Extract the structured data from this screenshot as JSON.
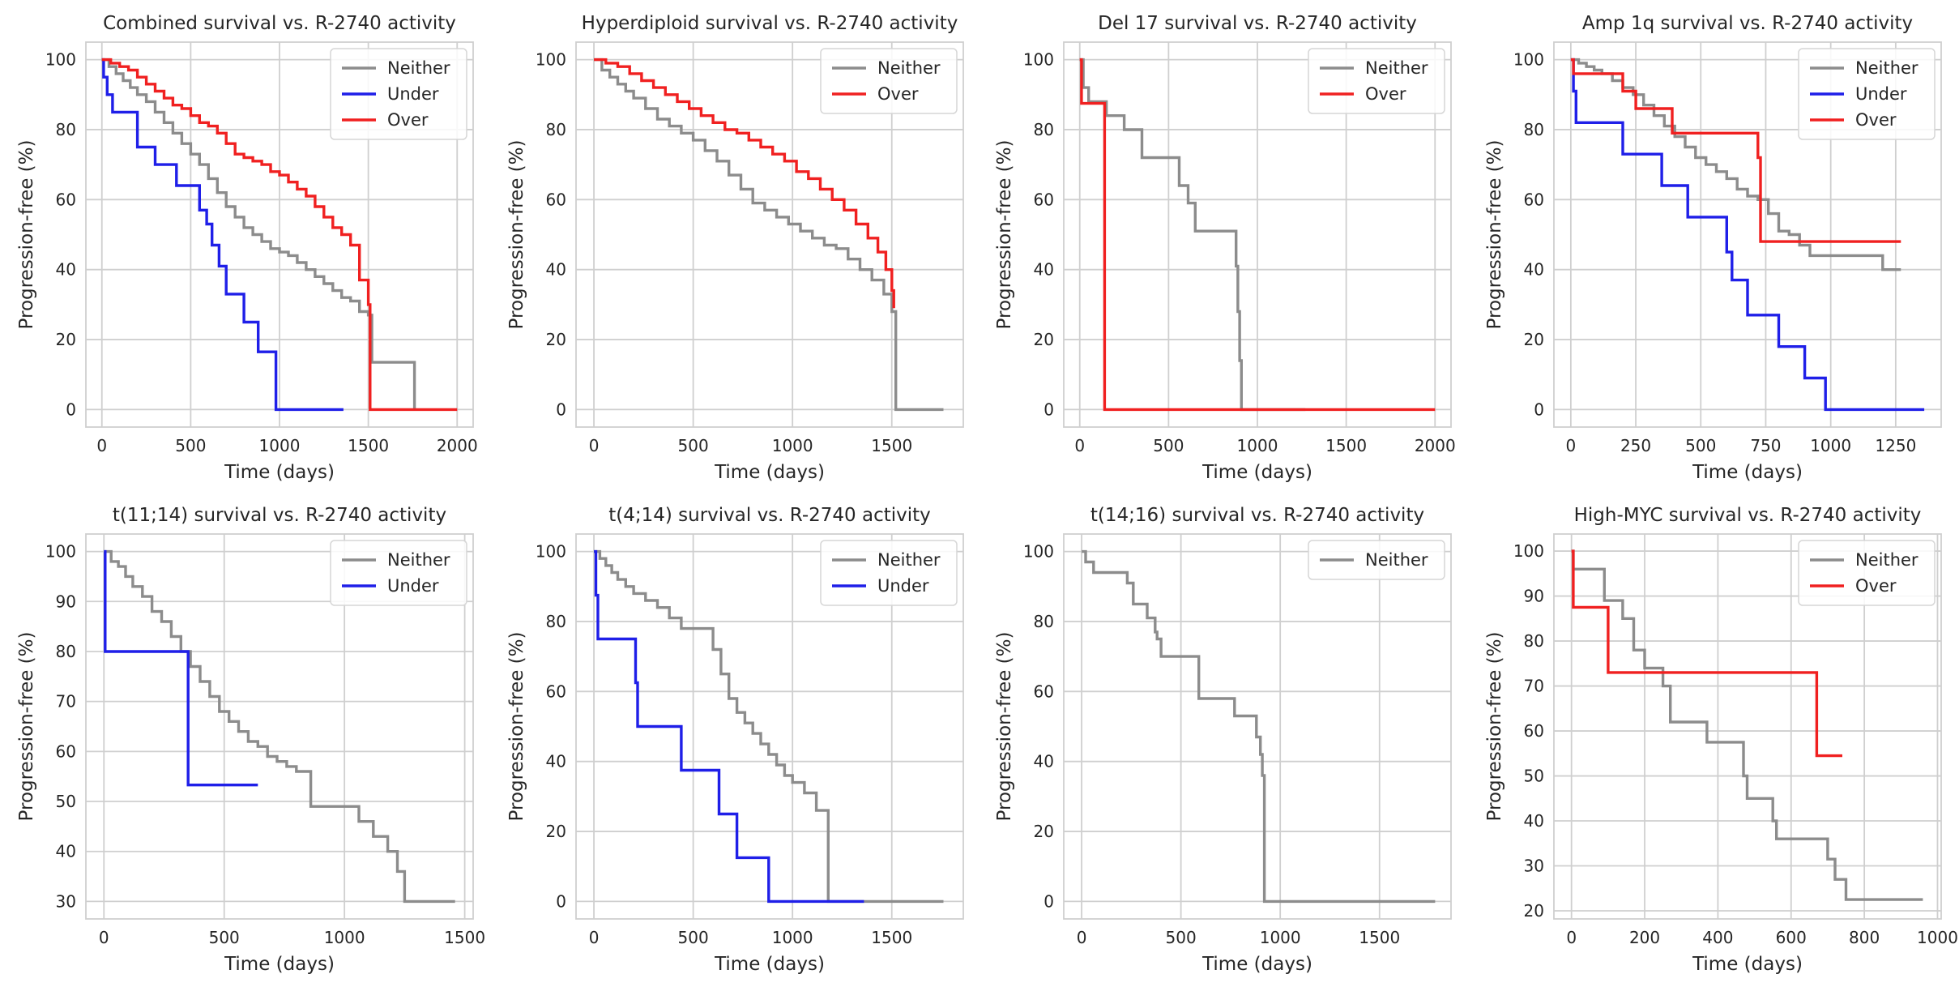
{
  "figure": {
    "colors": {
      "Neither": "#8c8c8c",
      "Under": "#1f1fe8",
      "Over": "#f02020",
      "grid": "#cfcfcf",
      "spine": "#cfcfcf"
    }
  },
  "chart_data": [
    {
      "type": "line",
      "title": "Combined survival vs. R-2740 activity",
      "xlabel": "Time (days)",
      "ylabel": "Progression-free (%)",
      "xlim": [
        -90,
        2090
      ],
      "ylim": [
        -5,
        105
      ],
      "xticks": [
        0,
        500,
        1000,
        1500,
        2000
      ],
      "yticks": [
        0,
        20,
        40,
        60,
        80,
        100
      ],
      "legend": "top-right",
      "legend_entries": [
        "Neither",
        "Under",
        "Over"
      ],
      "series": [
        {
          "name": "Neither",
          "x": [
            0,
            40,
            80,
            120,
            160,
            200,
            250,
            300,
            350,
            400,
            450,
            500,
            550,
            600,
            650,
            700,
            750,
            800,
            850,
            900,
            950,
            1000,
            1050,
            1100,
            1150,
            1200,
            1250,
            1300,
            1350,
            1400,
            1450,
            1500,
            1520,
            1750,
            1760
          ],
          "y": [
            100,
            98,
            96,
            94,
            92,
            90,
            88,
            85,
            82,
            79,
            76,
            73,
            70,
            66,
            62,
            58,
            55,
            52,
            50,
            48,
            46,
            45,
            44,
            42,
            40,
            38,
            36,
            34,
            32,
            31,
            28,
            27,
            13.5,
            13.5,
            0
          ]
        },
        {
          "name": "Under",
          "x": [
            0,
            10,
            30,
            60,
            200,
            300,
            420,
            550,
            590,
            620,
            660,
            700,
            800,
            880,
            980,
            1360
          ],
          "y": [
            100,
            95,
            90,
            85,
            75,
            70,
            64,
            57,
            53,
            47,
            41,
            33,
            25,
            16.5,
            0,
            0
          ]
        },
        {
          "name": "Over",
          "x": [
            0,
            50,
            100,
            150,
            200,
            250,
            300,
            350,
            400,
            450,
            500,
            550,
            600,
            650,
            700,
            750,
            800,
            850,
            900,
            950,
            1000,
            1050,
            1100,
            1150,
            1200,
            1250,
            1300,
            1350,
            1400,
            1450,
            1500,
            1510,
            2000
          ],
          "y": [
            100,
            99,
            98,
            97,
            95,
            93,
            91,
            89,
            87,
            86,
            84,
            82,
            81,
            79,
            76,
            73,
            72,
            71,
            70,
            68,
            67,
            65,
            63,
            61,
            58,
            55,
            52,
            50,
            47,
            37,
            30,
            0,
            0
          ]
        }
      ]
    },
    {
      "type": "line",
      "title": "Hyperdiploid survival vs. R-2740 activity",
      "xlabel": "Time (days)",
      "ylabel": "Progression-free (%)",
      "xlim": [
        -90,
        1860
      ],
      "ylim": [
        -5,
        105
      ],
      "xticks": [
        0,
        500,
        1000,
        1500
      ],
      "yticks": [
        0,
        20,
        40,
        60,
        80,
        100
      ],
      "legend": "top-right",
      "legend_entries": [
        "Neither",
        "Over"
      ],
      "series": [
        {
          "name": "Neither",
          "x": [
            0,
            40,
            80,
            120,
            160,
            200,
            260,
            320,
            380,
            440,
            500,
            560,
            620,
            680,
            740,
            800,
            860,
            920,
            980,
            1040,
            1100,
            1160,
            1220,
            1280,
            1340,
            1400,
            1460,
            1500,
            1520,
            1760
          ],
          "y": [
            100,
            97,
            95,
            93,
            91,
            89,
            86,
            83,
            81,
            79,
            77,
            74,
            71,
            67,
            63,
            59,
            57,
            55,
            53,
            51,
            49,
            47,
            46,
            43,
            40,
            37,
            33,
            28,
            0,
            0
          ]
        },
        {
          "name": "Over",
          "x": [
            0,
            60,
            120,
            180,
            240,
            300,
            360,
            420,
            480,
            540,
            600,
            660,
            720,
            780,
            840,
            900,
            960,
            1020,
            1080,
            1140,
            1200,
            1260,
            1320,
            1380,
            1430,
            1470,
            1500,
            1510
          ],
          "y": [
            100,
            99,
            98,
            96,
            94,
            92,
            90,
            88,
            86,
            84,
            82,
            80,
            79,
            77,
            75,
            73,
            71,
            68,
            66,
            63,
            60,
            57,
            53,
            49,
            45,
            40,
            34,
            29
          ]
        }
      ]
    },
    {
      "type": "line",
      "title": "Del 17 survival vs. R-2740 activity",
      "xlabel": "Time (days)",
      "ylabel": "Progression-free (%)",
      "xlim": [
        -90,
        2090
      ],
      "ylim": [
        -5,
        105
      ],
      "xticks": [
        0,
        500,
        1000,
        1500,
        2000
      ],
      "yticks": [
        0,
        20,
        40,
        60,
        80,
        100
      ],
      "legend": "top-right",
      "legend_entries": [
        "Neither",
        "Over"
      ],
      "series": [
        {
          "name": "Neither",
          "x": [
            0,
            20,
            50,
            150,
            250,
            350,
            560,
            610,
            650,
            730,
            880,
            890,
            900,
            910,
            1270
          ],
          "y": [
            100,
            92,
            88,
            84,
            80,
            72,
            64,
            59,
            51,
            51,
            41,
            28,
            14,
            0,
            0
          ]
        },
        {
          "name": "Over",
          "x": [
            0,
            10,
            130,
            140,
            2000
          ],
          "y": [
            100,
            87.5,
            87.5,
            0,
            0
          ]
        }
      ]
    },
    {
      "type": "line",
      "title": "Amp 1q survival vs. R-2740 activity",
      "xlabel": "Time (days)",
      "ylabel": "Progression-free (%)",
      "xlim": [
        -65,
        1425
      ],
      "ylim": [
        -5,
        105
      ],
      "xticks": [
        0,
        250,
        500,
        750,
        1000,
        1250
      ],
      "yticks": [
        0,
        20,
        40,
        60,
        80,
        100
      ],
      "legend": "top-right",
      "legend_entries": [
        "Neither",
        "Under",
        "Over"
      ],
      "series": [
        {
          "name": "Neither",
          "x": [
            0,
            30,
            60,
            90,
            120,
            160,
            200,
            240,
            280,
            320,
            360,
            400,
            440,
            480,
            520,
            560,
            600,
            640,
            680,
            720,
            760,
            800,
            840,
            880,
            920,
            1200,
            1270
          ],
          "y": [
            100,
            99,
            98,
            97,
            96,
            94,
            92,
            90,
            87,
            84,
            81,
            78,
            75,
            72,
            70,
            68,
            66,
            63,
            61,
            60,
            56,
            51,
            50,
            47,
            44,
            40,
            40
          ]
        },
        {
          "name": "Under",
          "x": [
            0,
            10,
            20,
            200,
            350,
            450,
            600,
            620,
            680,
            800,
            900,
            980,
            1360
          ],
          "y": [
            100,
            91,
            82,
            73,
            64,
            55,
            45,
            37,
            27,
            18,
            9,
            0,
            0
          ]
        },
        {
          "name": "Over",
          "x": [
            0,
            10,
            200,
            250,
            390,
            720,
            730,
            1270
          ],
          "y": [
            100,
            96,
            91,
            86,
            79,
            72,
            48,
            48
          ]
        }
      ]
    },
    {
      "type": "line",
      "title": "t(11;14) survival vs. R-2740 activity",
      "xlabel": "Time (days)",
      "ylabel": "Progression-free (%)",
      "xlim": [
        -75,
        1535
      ],
      "ylim": [
        26.5,
        103.5
      ],
      "xticks": [
        0,
        500,
        1000,
        1500
      ],
      "yticks": [
        30,
        40,
        50,
        60,
        70,
        80,
        90,
        100
      ],
      "legend": "top-right",
      "legend_entries": [
        "Neither",
        "Under"
      ],
      "series": [
        {
          "name": "Neither",
          "x": [
            0,
            30,
            60,
            90,
            120,
            160,
            200,
            240,
            280,
            320,
            360,
            400,
            440,
            480,
            520,
            560,
            600,
            640,
            680,
            720,
            760,
            800,
            860,
            1060,
            1120,
            1180,
            1220,
            1250,
            1460
          ],
          "y": [
            100,
            98,
            97,
            95,
            93,
            91,
            88,
            86,
            83,
            80,
            77,
            74,
            71,
            68,
            66,
            64,
            62,
            61,
            59,
            58,
            57,
            56,
            49,
            46,
            43,
            40,
            36,
            30,
            30
          ]
        },
        {
          "name": "Under",
          "x": [
            0,
            5,
            350,
            640
          ],
          "y": [
            100,
            80,
            53.3,
            53.3
          ]
        }
      ]
    },
    {
      "type": "line",
      "title": "t(4;14) survival vs. R-2740 activity",
      "xlabel": "Time (days)",
      "ylabel": "Progression-free (%)",
      "xlim": [
        -90,
        1860
      ],
      "ylim": [
        -5,
        105
      ],
      "xticks": [
        0,
        500,
        1000,
        1500
      ],
      "yticks": [
        0,
        20,
        40,
        60,
        80,
        100
      ],
      "legend": "top-right",
      "legend_entries": [
        "Neither",
        "Under"
      ],
      "series": [
        {
          "name": "Neither",
          "x": [
            0,
            30,
            60,
            90,
            120,
            160,
            200,
            260,
            320,
            380,
            440,
            520,
            600,
            640,
            680,
            720,
            760,
            800,
            840,
            880,
            920,
            960,
            1000,
            1060,
            1120,
            1180,
            1760
          ],
          "y": [
            100,
            98,
            96,
            94,
            92,
            90,
            88,
            86,
            84,
            81,
            78,
            78,
            72,
            65,
            58,
            54,
            51,
            48,
            45,
            42,
            39,
            36,
            34,
            31,
            26,
            0,
            0
          ]
        },
        {
          "name": "Under",
          "x": [
            0,
            10,
            20,
            210,
            220,
            440,
            630,
            720,
            880,
            1360
          ],
          "y": [
            100,
            87.5,
            75,
            62.5,
            50,
            37.5,
            25,
            12.5,
            0,
            0
          ]
        }
      ]
    },
    {
      "type": "line",
      "title": "t(14;16) survival vs. R-2740 activity",
      "xlabel": "Time (days)",
      "ylabel": "Progression-free (%)",
      "xlim": [
        -90,
        1860
      ],
      "ylim": [
        -5,
        105
      ],
      "xticks": [
        0,
        500,
        1000,
        1500
      ],
      "yticks": [
        0,
        20,
        40,
        60,
        80,
        100
      ],
      "legend": "top-right",
      "legend_entries": [
        "Neither"
      ],
      "series": [
        {
          "name": "Neither",
          "x": [
            0,
            20,
            60,
            230,
            260,
            330,
            370,
            380,
            400,
            590,
            770,
            880,
            900,
            910,
            920,
            1780
          ],
          "y": [
            100,
            97,
            94,
            91,
            85,
            81,
            77,
            75,
            70,
            58,
            53,
            47,
            42,
            36,
            0,
            0
          ]
        }
      ]
    },
    {
      "type": "line",
      "title": "High-MYC survival vs. R-2740 activity",
      "xlabel": "Time (days)",
      "ylabel": "Progression-free (%)",
      "xlim": [
        -48,
        1010
      ],
      "ylim": [
        18.2,
        103.8
      ],
      "xticks": [
        0,
        200,
        400,
        600,
        800,
        1000
      ],
      "yticks": [
        20,
        30,
        40,
        50,
        60,
        70,
        80,
        90,
        100
      ],
      "legend": "top-right",
      "legend_entries": [
        "Neither",
        "Over"
      ],
      "series": [
        {
          "name": "Neither",
          "x": [
            0,
            5,
            90,
            140,
            170,
            200,
            250,
            270,
            370,
            470,
            480,
            500,
            550,
            560,
            700,
            720,
            750,
            960
          ],
          "y": [
            100,
            96,
            89,
            85,
            78,
            74,
            70,
            62,
            57.5,
            50,
            45,
            45,
            40,
            36,
            31.5,
            27,
            22.5,
            22.5
          ]
        },
        {
          "name": "Over",
          "x": [
            0,
            5,
            100,
            670,
            740
          ],
          "y": [
            100,
            87.5,
            73,
            54.5,
            54.5
          ]
        }
      ]
    }
  ]
}
